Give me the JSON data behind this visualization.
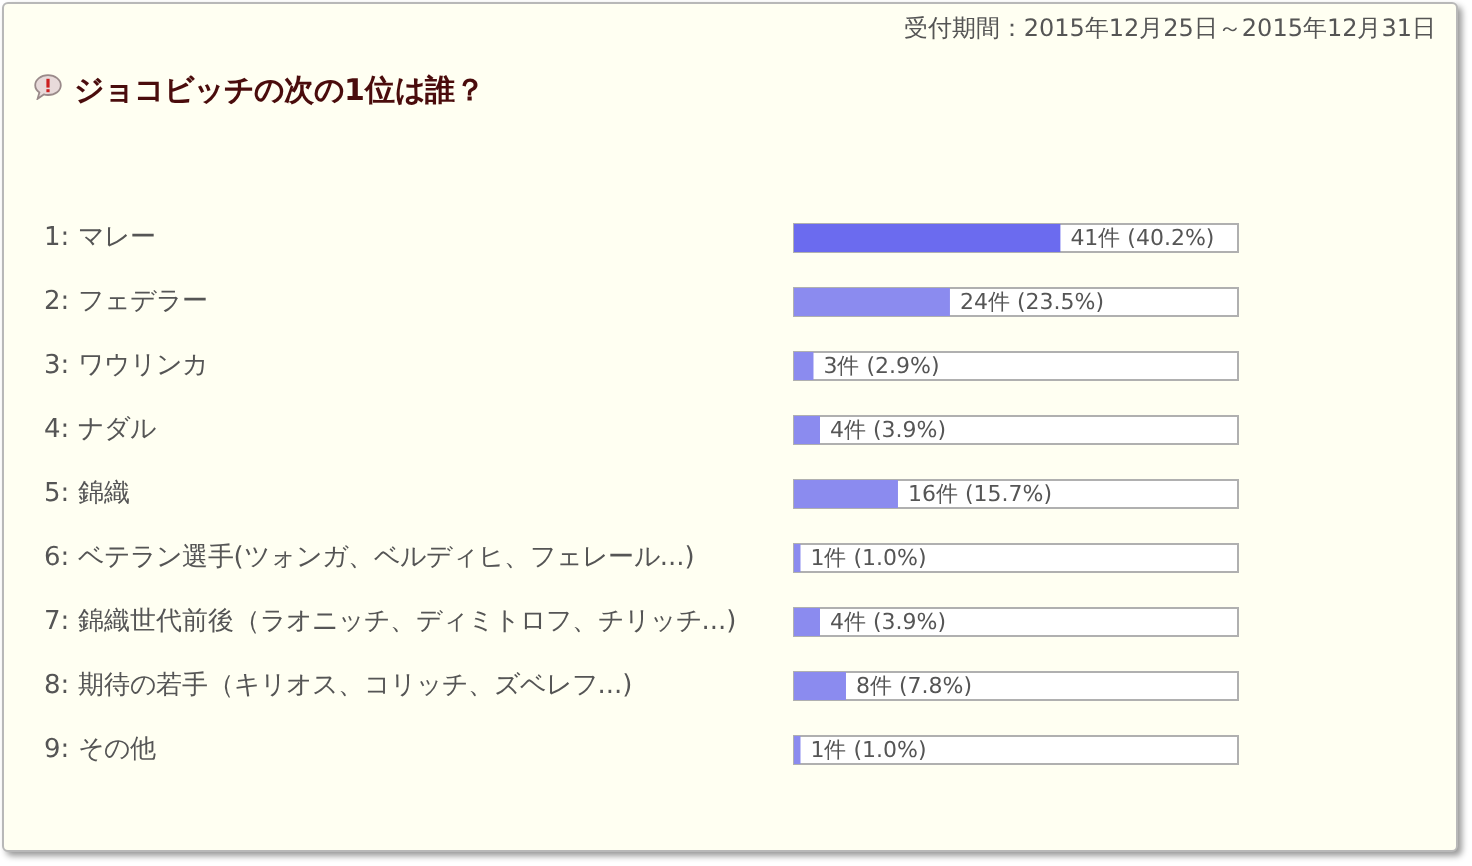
{
  "chart_data": {
    "type": "bar",
    "orientation": "horizontal",
    "title": "ジョコビッチの次の1位は誰？",
    "subtitle": "受付期間：2015年12月25日～2015年12月31日",
    "categories": [
      "1: マレー",
      "2: フェデラー",
      "3: ワウリンカ",
      "4: ナダル",
      "5: 錦織",
      "6: ベテラン選手(ツォンガ、ベルディヒ、フェレール...)",
      "7: 錦織世代前後（ラオニッチ、ディミトロフ、チリッチ...)",
      "8: 期待の若手（キリオス、コリッチ、ズベレフ...)",
      "9: その他"
    ],
    "values": [
      41,
      24,
      3,
      4,
      16,
      1,
      4,
      8,
      1
    ],
    "colors": [
      "#6b6bef",
      "#8b8bef",
      "#8b8bef",
      "#8b8bef",
      "#8b8bef",
      "#8b8bef",
      "#8b8bef",
      "#8b8bef",
      "#8b8bef"
    ],
    "value_labels": [
      "41件 (40.2%)",
      "24件 (23.5%)",
      "3件 (2.9%)",
      "4件 (3.9%)",
      "16件 (15.7%)",
      "1件 (1.0%)",
      "4件 (3.9%)",
      "8件 (7.8%)",
      "1件 (1.0%)"
    ],
    "tick_labels": "y"
  }
}
